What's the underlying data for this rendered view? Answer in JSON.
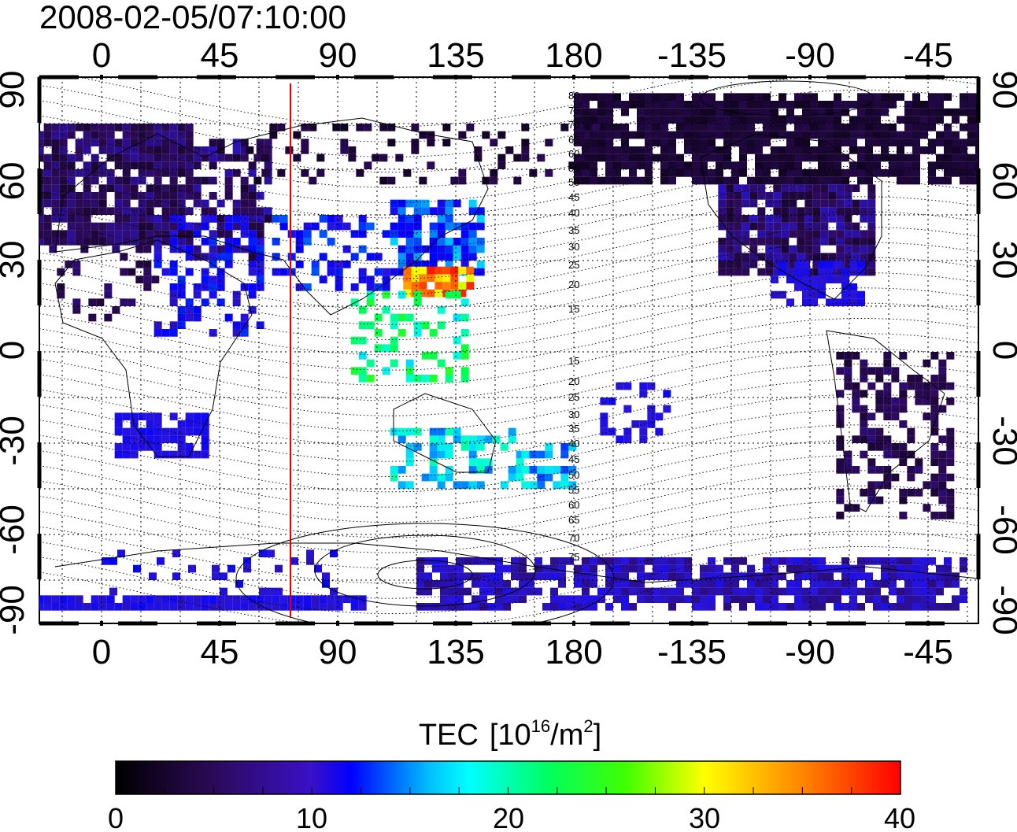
{
  "timestamp": "2008-02-05/07:10:00",
  "map": {
    "top_longitude_labels": [
      "0",
      "45",
      "90",
      "135",
      "180",
      "-135",
      "-90",
      "-45"
    ],
    "bottom_longitude_labels": [
      "0",
      "45",
      "90",
      "135",
      "180",
      "-135",
      "-90",
      "-45"
    ],
    "left_latitude_labels": [
      "90",
      "60",
      "30",
      "0",
      "-30",
      "-60",
      "-90"
    ],
    "right_latitude_labels": [
      "90",
      "60",
      "30",
      "0",
      "-30",
      "-60",
      "-90"
    ],
    "contour_labels_upper": [
      "80",
      "75",
      "70",
      "65",
      "60",
      "55",
      "50",
      "45",
      "40",
      "35",
      "30",
      "25",
      "20",
      "15"
    ],
    "contour_labels_lower": [
      "15",
      "20",
      "25",
      "30",
      "35",
      "40",
      "45",
      "50",
      "55",
      "60",
      "65",
      "70",
      "75"
    ],
    "red_line_longitude": 72,
    "colors": {
      "sun_line": "#e00000",
      "frame": "#000000"
    }
  },
  "colorbar": {
    "title_prefix": "TEC",
    "title_unit_base": "[10",
    "title_unit_exp": "16",
    "title_unit_mid": "/m",
    "title_unit_exp2": "2",
    "title_unit_end": "]",
    "ticks": [
      "0",
      "10",
      "20",
      "30",
      "40"
    ],
    "min": 0,
    "max": 40,
    "colors": [
      "#000000",
      "#3a0a6e",
      "#0000ff",
      "#00ffff",
      "#00ff00",
      "#ffff00",
      "#ff0000"
    ]
  }
}
